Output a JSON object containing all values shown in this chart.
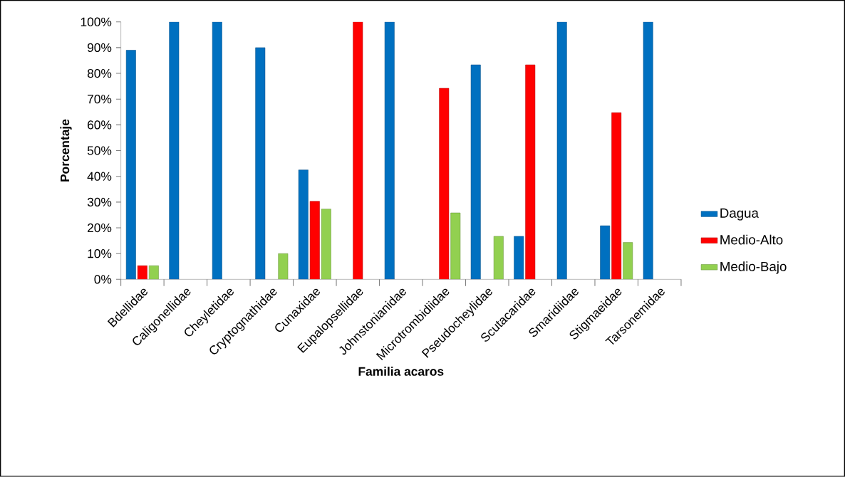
{
  "chart_data": {
    "type": "bar",
    "xlabel": "Familia acaros",
    "ylabel": "Porcentaje",
    "categories": [
      "Bdellidae",
      "Caligonellidae",
      "Cheyletidae",
      "Cryptognathidae",
      "Cunaxidae",
      "Eupalopsellidae",
      "Johnstonianidae",
      "Microtrombidiidae",
      "Pseudocheylidae",
      "Scutacaridae",
      "Smaridiidae",
      "Stigmaeidae",
      "Tarsonemidae"
    ],
    "series": [
      {
        "name": "Dagua",
        "color": "#0070c0",
        "values": [
          89,
          100,
          100,
          90,
          42.5,
          null,
          100,
          null,
          83.3,
          16.7,
          100,
          20.8,
          100
        ]
      },
      {
        "name": "Medio-Alto",
        "color": "#ff0000",
        "values": [
          5.3,
          null,
          null,
          null,
          30.3,
          100,
          null,
          74.2,
          null,
          83.3,
          null,
          64.7,
          null
        ]
      },
      {
        "name": "Medio-Bajo",
        "color": "#92d050",
        "values": [
          5.3,
          null,
          null,
          10,
          27.3,
          null,
          null,
          25.8,
          16.7,
          null,
          null,
          14.3,
          null
        ]
      }
    ],
    "ylim": [
      0,
      100
    ],
    "yticks": [
      {
        "value": 0,
        "label": "0%"
      },
      {
        "value": 10,
        "label": "10%"
      },
      {
        "value": 20,
        "label": "20%"
      },
      {
        "value": 30,
        "label": "30%"
      },
      {
        "value": 40,
        "label": "40%"
      },
      {
        "value": 50,
        "label": "50%"
      },
      {
        "value": 60,
        "label": "60%"
      },
      {
        "value": 70,
        "label": "70%"
      },
      {
        "value": 80,
        "label": "80%"
      },
      {
        "value": 90,
        "label": "90%"
      },
      {
        "value": 100,
        "label": "100%"
      }
    ],
    "grid": false,
    "legend": "right"
  }
}
